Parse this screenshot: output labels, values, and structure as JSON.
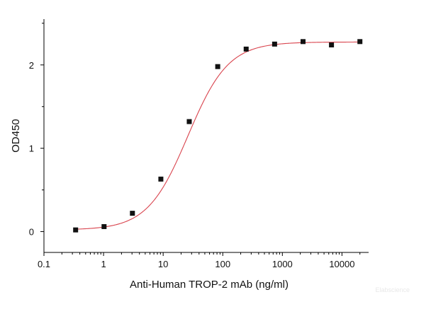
{
  "chart_data": {
    "type": "scatter",
    "title": "",
    "xlabel": "Anti-Human TROP-2 mAb (ng/ml)",
    "ylabel": "OD450",
    "x_scale": "log",
    "xlim": [
      0.1,
      28000
    ],
    "ylim": [
      -0.25,
      2.55
    ],
    "x_ticks": [
      0.1,
      1,
      10,
      100,
      1000,
      10000
    ],
    "x_tick_labels": [
      "0.1",
      "1",
      "10",
      "100",
      "1000",
      "10000"
    ],
    "y_ticks": [
      0,
      1,
      2
    ],
    "y_tick_labels": [
      "0",
      "1",
      "2"
    ],
    "grid": false,
    "legend": "none",
    "series": [
      {
        "x": [
          0.34,
          1.02,
          3.05,
          9.15,
          27.4,
          82.3,
          247,
          741,
          2222,
          6667,
          20000
        ],
        "y": [
          0.02,
          0.06,
          0.22,
          0.63,
          1.32,
          1.98,
          2.19,
          2.25,
          2.28,
          2.24,
          2.28
        ],
        "marker": "square",
        "color": "#111111",
        "fit": "4PL",
        "fit_color": "#d9434d"
      }
    ],
    "watermark": "Elabscience"
  }
}
